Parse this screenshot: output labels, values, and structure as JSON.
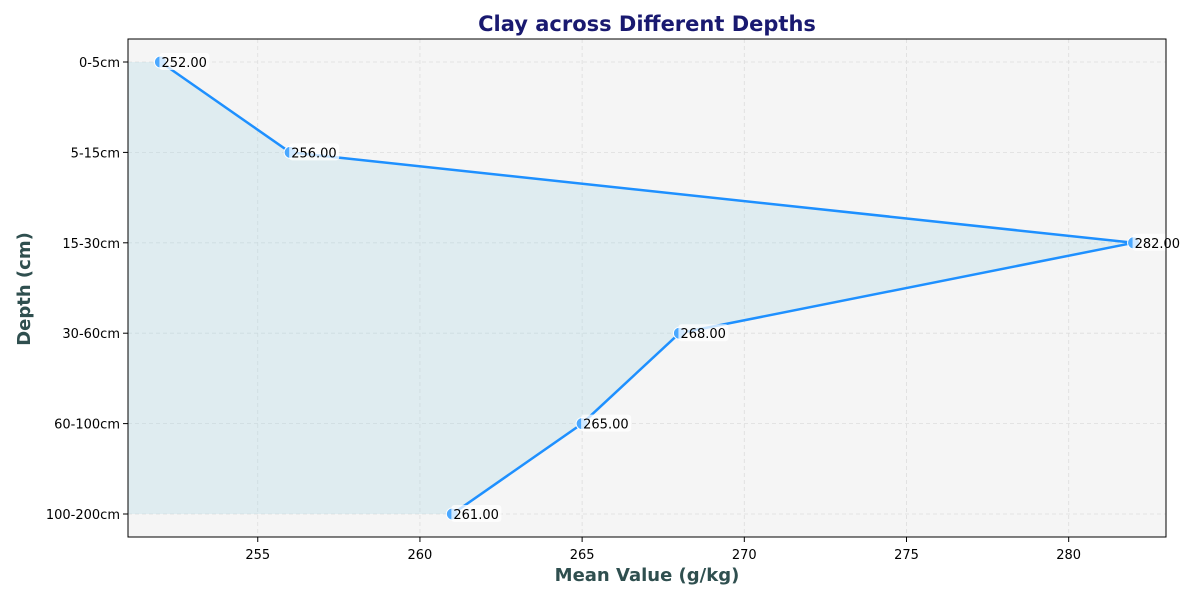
{
  "chart_data": {
    "type": "line",
    "orientation": "horizontal",
    "title": "Clay across Different Depths",
    "xlabel": "Mean Value (g/kg)",
    "ylabel": "Depth (cm)",
    "categories": [
      "0-5cm",
      "5-15cm",
      "15-30cm",
      "30-60cm",
      "60-100cm",
      "100-200cm"
    ],
    "values": [
      252,
      256,
      282,
      268,
      265,
      261
    ],
    "data_labels": [
      "252.00",
      "256.00",
      "282.00",
      "268.00",
      "265.00",
      "261.00"
    ],
    "xlim": [
      251,
      283
    ],
    "xticks": [
      255,
      260,
      265,
      270,
      275,
      280
    ],
    "grid": true,
    "fill": true,
    "colors": {
      "line": "#1e90ff",
      "marker": "#4aa8ff",
      "fill": "#add8e6",
      "plot_bg": "#f5f5f5",
      "grid": "#dddddd"
    }
  }
}
